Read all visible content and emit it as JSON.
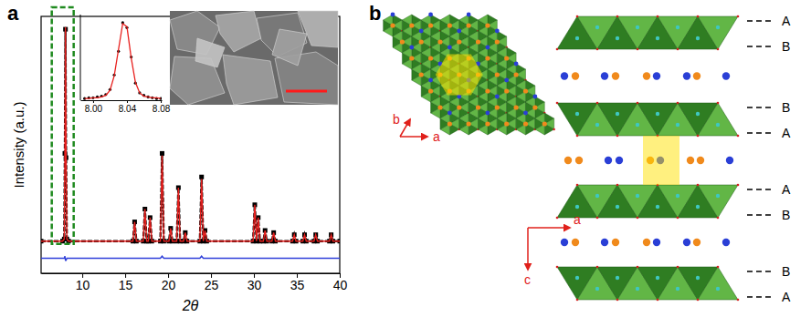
{
  "chart_data": [
    {
      "type": "line",
      "x_label": "2θ",
      "y_label": "Intensity (a.u.)",
      "xlim": [
        5.2,
        40
      ],
      "ylim": [
        -15,
        105
      ],
      "xticks": [
        10,
        15,
        20,
        25,
        30,
        35,
        40
      ],
      "tick_labels": "x",
      "x": [
        5.2,
        7.7,
        7.9,
        7.97,
        8.04,
        8.11,
        8.2,
        8.4,
        15.9,
        16.1,
        16.3,
        17.1,
        17.3,
        17.5,
        17.7,
        17.9,
        18.1,
        19.1,
        19.3,
        19.5,
        20.1,
        20.3,
        20.5,
        21.0,
        21.2,
        21.4,
        21.8,
        22.0,
        22.2,
        23.7,
        23.9,
        24.1,
        24.3,
        24.5,
        29.9,
        30.1,
        30.3,
        30.5,
        30.7,
        31.1,
        31.3,
        31.5,
        32.1,
        32.3,
        32.5,
        34.5,
        34.7,
        34.9,
        35.7,
        35.9,
        36.1,
        37.0,
        37.2,
        37.4,
        38.8,
        39.0,
        39.2,
        40
      ],
      "series": [
        {
          "type": "line",
          "line_style": "dashed",
          "marker": "square",
          "color": "#000000",
          "values": [
            0,
            0,
            1,
            41,
            99,
            39,
            1,
            0,
            0,
            9,
            0,
            0,
            15,
            0,
            0,
            11,
            0,
            0,
            41,
            0,
            0,
            6,
            0,
            0,
            25,
            0,
            0,
            4,
            0,
            0,
            30,
            0,
            5,
            0,
            0,
            17,
            0,
            11,
            0,
            0,
            5,
            0,
            0,
            4,
            0,
            0,
            3,
            0,
            0,
            3,
            0,
            0,
            3,
            0,
            0,
            3,
            0,
            0
          ]
        },
        {
          "type": "line",
          "line_style": "solid",
          "color": "#e8201e",
          "values": [
            0,
            0,
            1,
            40,
            100,
            40,
            1,
            0,
            0,
            9,
            0,
            0,
            15,
            0,
            0,
            11,
            0,
            0,
            40,
            0,
            0,
            6,
            0,
            0,
            25,
            0,
            0,
            4,
            0,
            0,
            29,
            0,
            5,
            0,
            0,
            17,
            0,
            11,
            0,
            0,
            5,
            0,
            0,
            4,
            0,
            0,
            3,
            0,
            0,
            3,
            0,
            0,
            3,
            0,
            0,
            3,
            0,
            0
          ]
        },
        {
          "type": "line",
          "line_style": "solid",
          "color": "#2f3fd9",
          "values": [
            -8,
            -8,
            -8,
            -7,
            -9,
            -9,
            -8,
            -8,
            -8,
            -8,
            -8,
            -8,
            -8,
            -8,
            -8,
            -8,
            -8,
            -8,
            -7,
            -8,
            -8,
            -8,
            -8,
            -8,
            -8,
            -8,
            -8,
            -8,
            -8,
            -8,
            -7,
            -8,
            -8,
            -8,
            -8,
            -8,
            -8,
            -8,
            -8,
            -8,
            -8,
            -8,
            -8,
            -8,
            -8,
            -8,
            -8,
            -8,
            -8,
            -8,
            -8,
            -8,
            -8,
            -8,
            -8,
            -8,
            -8,
            -8
          ]
        }
      ]
    },
    {
      "type": "line",
      "xlim": [
        7.985,
        8.081
      ],
      "ylim": [
        0,
        105
      ],
      "xticks": [
        {
          "value": 8,
          "label": "8.00"
        },
        {
          "value": 8.04,
          "label": "8.04"
        },
        {
          "value": 8.08,
          "label": "8.08"
        }
      ],
      "tick_labels": "x",
      "x": [
        7.99,
        7.995,
        8.0,
        8.005,
        8.01,
        8.015,
        8.02,
        8.025,
        8.03,
        8.035,
        8.04,
        8.045,
        8.05,
        8.055,
        8.06,
        8.065,
        8.07,
        8.075,
        8.08
      ],
      "series": [
        {
          "type": "scatter",
          "marker": "circle",
          "color": "#000000",
          "values": [
            2,
            3,
            3,
            4,
            5,
            7,
            13,
            31,
            60,
            95,
            89,
            53,
            21,
            9,
            6,
            4,
            3,
            2,
            2
          ]
        },
        {
          "type": "line",
          "line_style": "solid",
          "color": "#e8201e",
          "values": [
            2,
            2,
            3,
            3,
            4,
            6,
            12,
            30,
            62,
            94,
            90,
            52,
            22,
            9,
            5,
            4,
            3,
            3,
            2
          ]
        }
      ]
    }
  ],
  "panel_labels": [
    "a",
    "b"
  ],
  "structure": {
    "top_view": {
      "axis_labels": [
        "b",
        "a"
      ]
    },
    "side_view": {
      "axis_labels": [
        "a",
        "c"
      ],
      "layer_labels": [
        "A",
        "B",
        "B",
        "A",
        "A",
        "B",
        "B",
        "A"
      ]
    }
  }
}
